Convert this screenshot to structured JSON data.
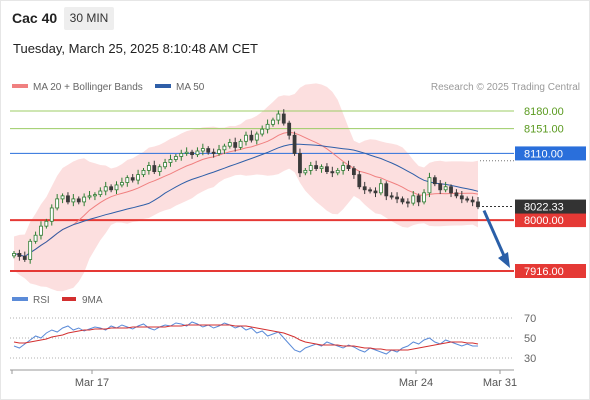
{
  "header": {
    "title": "Cac 40",
    "timeframe": "30 MIN"
  },
  "datetime": "Tuesday, March 25, 2025 8:10:48 AM CET",
  "copyright": "Research © 2025 Trading Central",
  "legend": {
    "ma20_bb": "MA 20 + Bollinger Bands",
    "ma50": "MA 50",
    "rsi": "RSI",
    "rsi_ma": "9MA"
  },
  "colors": {
    "ma20": "#f08080",
    "band_fill": "#fbd9d9",
    "ma50": "#2f5fa8",
    "resistance": "#9ccc65",
    "pivot": "#2a6fdb",
    "support": "#e53935",
    "arrow": "#2a5fa8",
    "candle_up": "#2e7d32",
    "candle_down": "#3a3a3a",
    "rsi": "#5b8bd8",
    "rsi_ma": "#d32f2f"
  },
  "chart_data": {
    "type": "candlestick",
    "ylim": [
      7900,
      8195
    ],
    "x_ticks": [
      "Mar 17",
      "Mar 24",
      "Mar 31"
    ],
    "last_price": "8022.33",
    "levels": [
      {
        "value": 8180,
        "label": "8180.00",
        "kind": "resistance"
      },
      {
        "value": 8151,
        "label": "8151.00",
        "kind": "resistance"
      },
      {
        "value": 8110,
        "label": "8110.00",
        "kind": "pivot"
      },
      {
        "value": 8000,
        "label": "8000.00",
        "kind": "support"
      },
      {
        "value": 7916,
        "label": "7916.00",
        "kind": "support"
      }
    ],
    "arrow_target": 7916,
    "close_series": [
      7945,
      7940,
      7935,
      7965,
      7975,
      7990,
      7998,
      8020,
      8035,
      8040,
      8030,
      8035,
      8030,
      8038,
      8040,
      8042,
      8048,
      8055,
      8050,
      8058,
      8062,
      8070,
      8066,
      8075,
      8082,
      8090,
      8080,
      8088,
      8095,
      8100,
      8105,
      8110,
      8112,
      8108,
      8114,
      8118,
      8112,
      8110,
      8116,
      8122,
      8128,
      8120,
      8130,
      8140,
      8132,
      8142,
      8150,
      8158,
      8165,
      8175,
      8160,
      8140,
      8110,
      8078,
      8082,
      8090,
      8085,
      8088,
      8080,
      8078,
      8082,
      8090,
      8085,
      8075,
      8055,
      8050,
      8048,
      8045,
      8060,
      8040,
      8038,
      8035,
      8030,
      8028,
      8040,
      8030,
      8045,
      8070,
      8060,
      8050,
      8055,
      8045,
      8040,
      8035,
      8033,
      8030,
      8022
    ],
    "rsi": {
      "ticks": [
        70,
        50,
        30
      ],
      "ylim": [
        20,
        80
      ],
      "values": [
        42,
        40,
        44,
        48,
        52,
        50,
        55,
        58,
        56,
        60,
        62,
        58,
        60,
        57,
        59,
        61,
        60,
        58,
        62,
        60,
        63,
        61,
        59,
        62,
        64,
        60,
        58,
        61,
        63,
        62,
        65,
        64,
        62,
        66,
        64,
        61,
        63,
        60,
        62,
        65,
        63,
        60,
        62,
        58,
        60,
        55,
        57,
        52,
        54,
        56,
        50,
        44,
        38,
        36,
        40,
        42,
        44,
        42,
        46,
        44,
        42,
        40,
        43,
        41,
        38,
        36,
        40,
        38,
        36,
        34,
        38,
        36,
        40,
        42,
        46,
        44,
        48,
        50,
        46,
        44,
        48,
        46,
        44,
        42,
        44,
        42,
        42
      ],
      "ma_values": [
        46,
        45,
        45,
        46,
        47,
        48,
        49,
        51,
        52,
        53,
        55,
        56,
        57,
        58,
        58,
        59,
        59,
        59,
        60,
        60,
        60,
        60,
        61,
        61,
        61,
        61,
        61,
        61,
        61,
        62,
        62,
        62,
        63,
        63,
        63,
        63,
        63,
        63,
        63,
        63,
        63,
        62,
        62,
        62,
        61,
        60,
        59,
        58,
        57,
        56,
        55,
        53,
        51,
        48,
        46,
        45,
        44,
        43,
        43,
        43,
        43,
        42,
        42,
        42,
        41,
        40,
        40,
        39,
        39,
        38,
        38,
        38,
        38,
        38,
        39,
        40,
        41,
        42,
        43,
        44,
        45,
        46,
        46,
        46,
        45,
        45,
        44
      ]
    }
  }
}
